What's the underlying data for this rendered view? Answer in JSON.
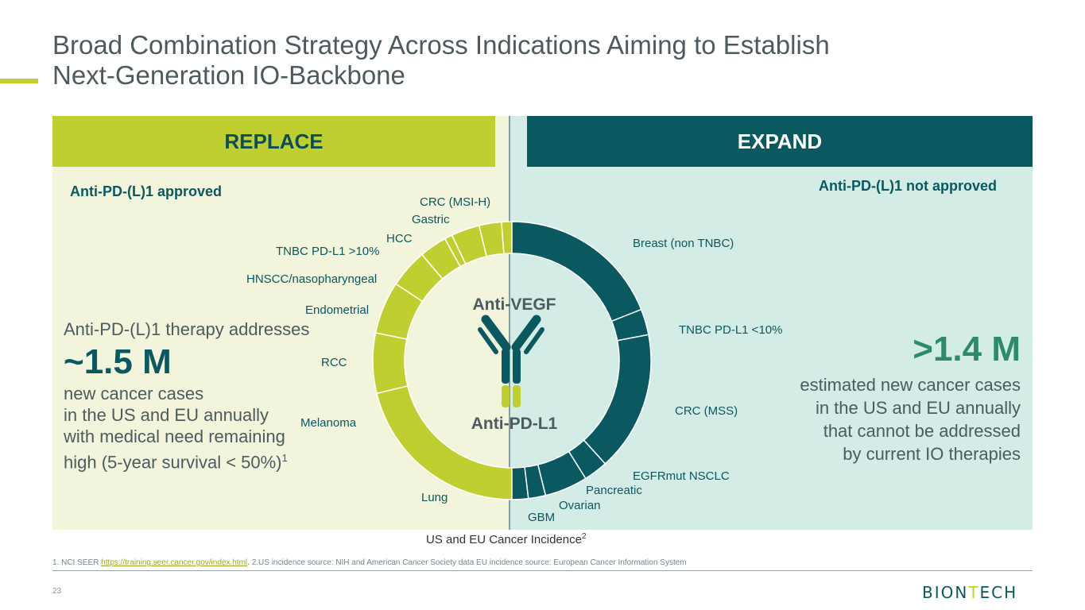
{
  "title": {
    "line1": "Broad Combination Strategy Across Indications Aiming to Establish",
    "line2": "Next-Generation IO-Backbone"
  },
  "replace": {
    "header": "REPLACE",
    "tag": "Anti-PD-(L)1 approved",
    "intro": "Anti-PD-(L)1 therapy addresses",
    "big_number": "~1.5 M",
    "desc_lines": [
      "new cancer cases",
      "in the US and EU annually",
      "with medical need remaining",
      "high (5-year survival < 50%)"
    ],
    "desc_sup": "1"
  },
  "expand": {
    "header": "EXPAND",
    "tag": "Anti-PD-(L)1 not approved",
    "big_number": ">1.4 M",
    "desc_lines": [
      "estimated new cancer cases",
      "in the US and EU annually",
      "that cannot be addressed",
      "by current IO therapies"
    ]
  },
  "center": {
    "top_label": "Anti-VEGF",
    "bottom_label": "Anti-PD-L1",
    "icon": "antibody-icon"
  },
  "chart_data": {
    "type": "pie",
    "title": "US and EU Cancer Incidence",
    "title_sup": "2",
    "colors": {
      "replace": "#c0cf30",
      "expand": "#0a5860",
      "separator": "#ffffff"
    },
    "segments": [
      {
        "label": "CRC (MSI-H)",
        "group": "replace",
        "value": 1.2
      },
      {
        "label": "Gastric",
        "group": "replace",
        "value": 2.6
      },
      {
        "label": "HCC",
        "group": "replace",
        "value": 3.3
      },
      {
        "label": "TNBC  PD-L1 >10%",
        "group": "replace",
        "value": 0.9
      },
      {
        "label": "HNSCC/nasopharyngeal",
        "group": "replace",
        "value": 3.2
      },
      {
        "label": "Endometrial",
        "group": "replace",
        "value": 4.5
      },
      {
        "label": "RCC",
        "group": "replace",
        "value": 6.1
      },
      {
        "label": "Melanoma",
        "group": "replace",
        "value": 7.0
      },
      {
        "label": "Lung",
        "group": "replace",
        "value": 21.2
      },
      {
        "label": "GBM",
        "group": "expand",
        "value": 1.9
      },
      {
        "label": "Ovarian",
        "group": "expand",
        "value": 2.0
      },
      {
        "label": "Pancreatic",
        "group": "expand",
        "value": 5.0
      },
      {
        "label": "EGFRmut NSCLC",
        "group": "expand",
        "value": 2.8
      },
      {
        "label": "CRC (MSS)",
        "group": "expand",
        "value": 16.3
      },
      {
        "label": "TNBC PD-L1 <10%",
        "group": "expand",
        "value": 3.0
      },
      {
        "label": "Breast (non TNBC)",
        "group": "expand",
        "value": 19.0
      }
    ]
  },
  "footnote": {
    "prefix": "1. NCI SEER ",
    "link": "https://training.seer.cancer.gov/index.html",
    "suffix": ". 2.US incidence source: NIH and American Cancer Society data EU incidence source: European Cancer Information System"
  },
  "page_number": "23",
  "logo": {
    "part1": "BION",
    "part2": "T",
    "part3": "ECH"
  }
}
